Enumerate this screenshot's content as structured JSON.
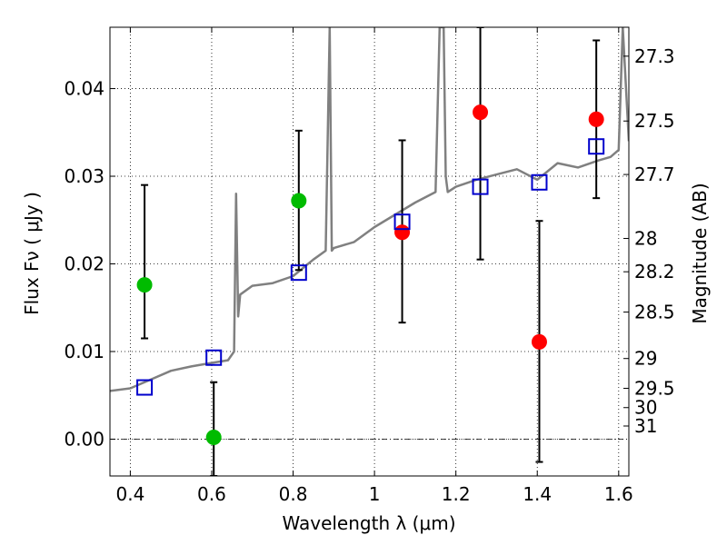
{
  "chart_data": {
    "type": "scatter",
    "xlabel": "Wavelength  λ (μm)",
    "ylabel_left": "Flux  Fν  ( μJy )",
    "ylabel_right": "Magnitude (AB)",
    "xlim": [
      0.35,
      1.625
    ],
    "ylim": [
      -0.0042,
      0.047
    ],
    "grid": true,
    "x_ticks": [
      0.4,
      0.6,
      0.8,
      1.0,
      1.2,
      1.4,
      1.6
    ],
    "x_tick_labels": [
      "0.4",
      "0.6",
      "0.8",
      "1",
      "1.2",
      "1.4",
      "1.6"
    ],
    "y_ticks": [
      0.0,
      0.01,
      0.02,
      0.03,
      0.04
    ],
    "y_tick_labels": [
      "0.00",
      "0.01",
      "0.02",
      "0.03",
      "0.04"
    ],
    "right_axis_ticks": [
      {
        "label": "27.3",
        "flux": 0.0437
      },
      {
        "label": "27.5",
        "flux": 0.0363
      },
      {
        "label": "27.7",
        "flux": 0.0302
      },
      {
        "label": "28",
        "flux": 0.0229
      },
      {
        "label": "28.2",
        "flux": 0.0191
      },
      {
        "label": "28.5",
        "flux": 0.0145
      },
      {
        "label": "29",
        "flux": 0.0092
      },
      {
        "label": "29.5",
        "flux": 0.0058
      },
      {
        "label": "30",
        "flux": 0.0036
      },
      {
        "label": "31",
        "flux": 0.0015
      }
    ],
    "series": [
      {
        "marker": "circle",
        "color": "#00bb00",
        "points": [
          {
            "x": 0.435,
            "y": 0.0176,
            "err_lo": 0.0115,
            "err_hi": 0.029
          },
          {
            "x": 0.605,
            "y": 0.0002,
            "err_lo": -0.0042,
            "err_hi": 0.0065
          },
          {
            "x": 0.814,
            "y": 0.0272,
            "err_lo": 0.0193,
            "err_hi": 0.0352
          }
        ]
      },
      {
        "marker": "circle",
        "color": "#ff0000",
        "points": [
          {
            "x": 1.068,
            "y": 0.0236,
            "err_lo": 0.0133,
            "err_hi": 0.0341
          },
          {
            "x": 1.26,
            "y": 0.0373,
            "err_lo": 0.0205,
            "err_hi": 0.047
          },
          {
            "x": 1.405,
            "y": 0.0111,
            "err_lo": -0.0026,
            "err_hi": 0.0249
          },
          {
            "x": 1.545,
            "y": 0.0365,
            "err_lo": 0.0275,
            "err_hi": 0.0455
          }
        ]
      },
      {
        "marker": "open-square",
        "color": "#0000cc",
        "points": [
          {
            "x": 0.435,
            "y": 0.0059
          },
          {
            "x": 0.605,
            "y": 0.0093
          },
          {
            "x": 0.814,
            "y": 0.019
          },
          {
            "x": 1.068,
            "y": 0.0248
          },
          {
            "x": 1.26,
            "y": 0.0288
          },
          {
            "x": 1.405,
            "y": 0.0293
          },
          {
            "x": 1.545,
            "y": 0.0334
          }
        ]
      }
    ],
    "model_spectrum": {
      "color": "#808080",
      "x": [
        0.35,
        0.4,
        0.45,
        0.5,
        0.55,
        0.6,
        0.64,
        0.655,
        0.66,
        0.665,
        0.67,
        0.7,
        0.75,
        0.8,
        0.85,
        0.88,
        0.89,
        0.895,
        0.9,
        0.95,
        1.0,
        1.05,
        1.1,
        1.15,
        1.16,
        1.17,
        1.175,
        1.18,
        1.2,
        1.25,
        1.3,
        1.35,
        1.4,
        1.45,
        1.5,
        1.55,
        1.58,
        1.6,
        1.61,
        1.625
      ],
      "y": [
        0.0055,
        0.0058,
        0.0068,
        0.0078,
        0.0083,
        0.0087,
        0.009,
        0.01,
        0.028,
        0.014,
        0.0165,
        0.0175,
        0.0178,
        0.0186,
        0.0205,
        0.0215,
        0.047,
        0.0215,
        0.0218,
        0.0225,
        0.0242,
        0.0256,
        0.027,
        0.0282,
        0.047,
        0.047,
        0.03,
        0.0282,
        0.0288,
        0.0296,
        0.0302,
        0.0308,
        0.0296,
        0.0315,
        0.031,
        0.0318,
        0.0322,
        0.033,
        0.047,
        0.034
      ]
    }
  }
}
